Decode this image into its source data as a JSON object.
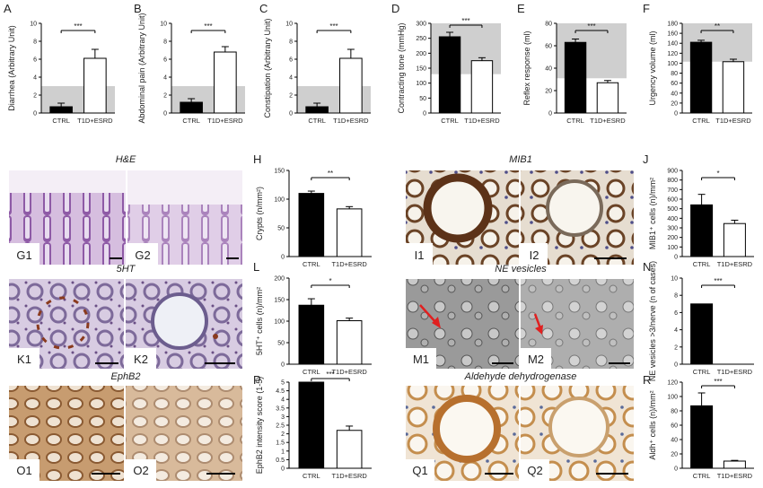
{
  "chart_data": [
    {
      "id": "A",
      "type": "bar",
      "letter": "A",
      "categories": [
        "CTRL",
        "T1D+ESRD"
      ],
      "values": [
        0.7,
        6.1
      ],
      "errors": [
        0.4,
        1.0
      ],
      "ylim": [
        0,
        10
      ],
      "yticks": [
        0,
        2,
        4,
        6,
        8,
        10
      ],
      "ylabel": "Diarrhea (Arbitrary Unit)",
      "sig": "***",
      "band": [
        0,
        3
      ]
    },
    {
      "id": "B",
      "type": "bar",
      "letter": "B",
      "categories": [
        "CTRL",
        "T1D+ESRD"
      ],
      "values": [
        1.2,
        6.8
      ],
      "errors": [
        0.4,
        0.6
      ],
      "ylim": [
        0,
        10
      ],
      "yticks": [
        0,
        2,
        4,
        6,
        8,
        10
      ],
      "ylabel": "Abdominal pain (Arbitrary Unit)",
      "sig": "***",
      "band": [
        0,
        3
      ]
    },
    {
      "id": "C",
      "type": "bar",
      "letter": "C",
      "categories": [
        "CTRL",
        "T1D+ESRD"
      ],
      "values": [
        0.7,
        6.1
      ],
      "errors": [
        0.4,
        1.0
      ],
      "ylim": [
        0,
        10
      ],
      "yticks": [
        0,
        2,
        4,
        6,
        8,
        10
      ],
      "ylabel": "Constipation (Arbitrary Unit)",
      "sig": "***",
      "band": [
        0,
        3
      ]
    },
    {
      "id": "D",
      "type": "bar",
      "letter": "D",
      "categories": [
        "CTRL",
        "T1D+ESRD"
      ],
      "values": [
        255,
        175
      ],
      "errors": [
        15,
        10
      ],
      "ylim": [
        0,
        300
      ],
      "yticks": [
        0,
        50,
        100,
        150,
        200,
        250,
        300
      ],
      "ylabel": "Contracting tone (mmHg)",
      "sig": "***",
      "band": [
        130,
        300
      ]
    },
    {
      "id": "E",
      "type": "bar",
      "letter": "E",
      "categories": [
        "CTRL",
        "T1D+ESRD"
      ],
      "values": [
        63,
        27
      ],
      "errors": [
        3,
        2
      ],
      "ylim": [
        0,
        80
      ],
      "yticks": [
        0,
        20,
        40,
        60,
        80
      ],
      "ylabel": "Reflex response (ml)",
      "sig": "***",
      "band": [
        31,
        80
      ]
    },
    {
      "id": "F",
      "type": "bar",
      "letter": "F",
      "categories": [
        "CTRL",
        "T1D+ESRD"
      ],
      "values": [
        142,
        103
      ],
      "errors": [
        4,
        5
      ],
      "ylim": [
        0,
        180
      ],
      "yticks": [
        0,
        20,
        40,
        60,
        80,
        100,
        120,
        140,
        160,
        180
      ],
      "ylabel": "Urgency volume (ml)",
      "sig": "**",
      "band": [
        103,
        180
      ]
    },
    {
      "id": "H",
      "type": "bar",
      "letter": "H",
      "categories": [
        "CTRL",
        "T1D+ESRD"
      ],
      "values": [
        110,
        83
      ],
      "errors": [
        4,
        4
      ],
      "ylim": [
        0,
        150
      ],
      "yticks": [
        0,
        50,
        100,
        150
      ],
      "ylabel": "Crypts (n/mm²)",
      "sig": "**"
    },
    {
      "id": "J",
      "type": "bar",
      "letter": "J",
      "categories": [
        "CTRL",
        "T1D+ESRD"
      ],
      "values": [
        540,
        345
      ],
      "errors": [
        110,
        35
      ],
      "ylim": [
        0,
        900
      ],
      "yticks": [
        0,
        100,
        200,
        300,
        400,
        500,
        600,
        700,
        800,
        900
      ],
      "ylabel": "MIB1⁺ cells (n)/mm²",
      "sig": "*"
    },
    {
      "id": "L",
      "type": "bar",
      "letter": "L",
      "categories": [
        "CTRL",
        "T1D+ESRD"
      ],
      "values": [
        137,
        101
      ],
      "errors": [
        15,
        6
      ],
      "ylim": [
        0,
        200
      ],
      "yticks": [
        0,
        50,
        100,
        150,
        200
      ],
      "ylabel": "5HT⁺ cells (n)/mm²",
      "sig": "*"
    },
    {
      "id": "N",
      "type": "bar",
      "letter": "N",
      "categories": [
        "CTRL",
        "T1D+ESRD"
      ],
      "values": [
        7,
        0
      ],
      "errors": [
        0,
        0
      ],
      "ylim": [
        0,
        10
      ],
      "yticks": [
        0,
        2,
        4,
        6,
        8,
        10
      ],
      "ylabel": "NE vesicles >3/nerve (n of cases)",
      "sig": "***"
    },
    {
      "id": "P",
      "type": "bar",
      "letter": "P",
      "categories": [
        "CTRL",
        "T1D+ESRD"
      ],
      "values": [
        5,
        2.2
      ],
      "errors": [
        0,
        0.25
      ],
      "ylim": [
        0,
        5
      ],
      "yticks": [
        0,
        0.5,
        1,
        1.5,
        2,
        2.5,
        3,
        3.5,
        4,
        4.5,
        5
      ],
      "ylabel": "EphB2 intensity score (1-5)",
      "sig": "***"
    },
    {
      "id": "R",
      "type": "bar",
      "letter": "R",
      "categories": [
        "CTRL",
        "T1D+ESRD"
      ],
      "values": [
        87,
        10
      ],
      "errors": [
        18,
        1
      ],
      "ylim": [
        0,
        120
      ],
      "yticks": [
        0,
        20,
        40,
        60,
        80,
        100,
        120
      ],
      "ylabel": "Aldh⁺ cells (n)/mm²",
      "sig": "***"
    }
  ],
  "micrographs": {
    "he_title": "H&E",
    "he_labels": [
      "G1",
      "G2"
    ],
    "ht_title": "5HT",
    "ht_labels": [
      "K1",
      "K2"
    ],
    "eph_title": "EphB2",
    "eph_labels": [
      "O1",
      "O2"
    ],
    "mib_title": "MIB1",
    "mib_labels": [
      "I1",
      "I2"
    ],
    "ne_title": "NE vesicles",
    "ne_labels": [
      "M1",
      "M2"
    ],
    "aldh_title": "Aldehyde dehydrogenase",
    "aldh_labels": [
      "Q1",
      "Q2"
    ]
  },
  "colors": {
    "ctrl_bar": "#000000",
    "t1d_bar": "#ffffff",
    "band": "#cfcfcf",
    "he_tissue": "#a57bb8",
    "ht_tissue": "#c9b8d6",
    "eph_tissue": "#b58a5e",
    "mib_tissue": "#c7b6a0",
    "em_tissue": "#8d8d8d",
    "aldh_tissue": "#d9b68f",
    "arrow": "#e02020"
  }
}
